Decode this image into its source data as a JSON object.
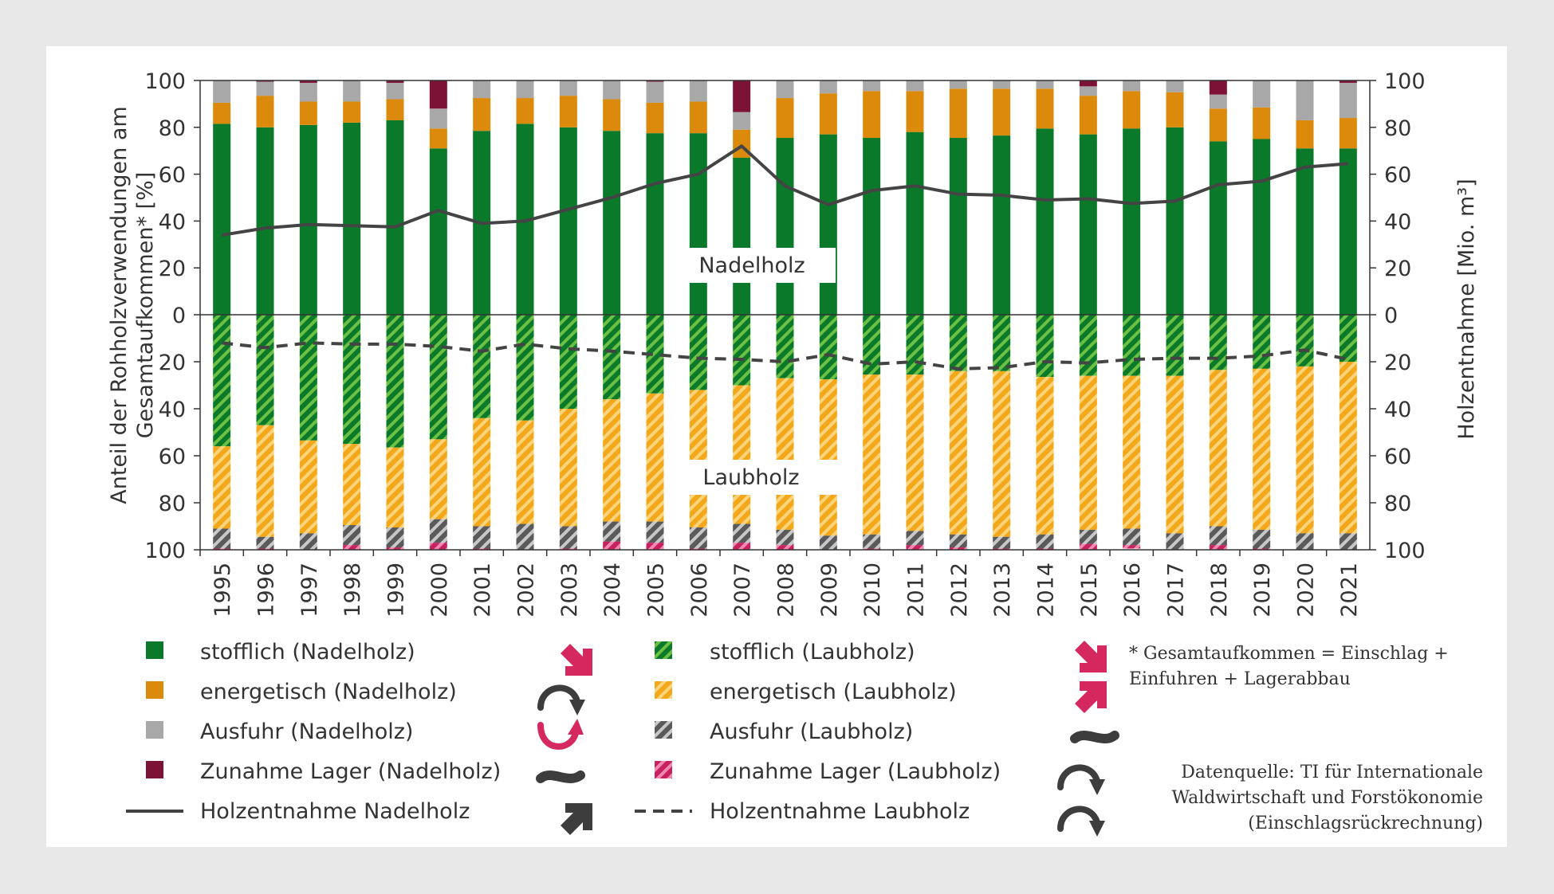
{
  "chart_data": {
    "type": "bar",
    "stacked": true,
    "layout": "diverging",
    "categories": [
      "1995",
      "1996",
      "1997",
      "1998",
      "1999",
      "2000",
      "2001",
      "2002",
      "2003",
      "2004",
      "2005",
      "2006",
      "2007",
      "2008",
      "2009",
      "2010",
      "2011",
      "2012",
      "2013",
      "2014",
      "2015",
      "2016",
      "2017",
      "2018",
      "2019",
      "2020",
      "2021"
    ],
    "ylabel_left": "Anteil der Rohholzverwendungen am Gesamtaufkommen* [%]",
    "ylabel_right": "Holzentnahme [Mio. m³]",
    "ylim_upper": [
      0,
      100
    ],
    "ylim_lower": [
      0,
      100
    ],
    "yticks_upper": [
      "0",
      "20",
      "40",
      "60",
      "80",
      "100"
    ],
    "yticks_lower": [
      "0",
      "20",
      "40",
      "60",
      "80",
      "100"
    ],
    "panel_labels": {
      "upper": "Nadelholz",
      "lower": "Laubholz"
    },
    "upper_series": [
      {
        "key": "stoff",
        "name": "stofflich (Nadelholz)",
        "color": "#0a7a2a",
        "values": [
          81.5,
          80,
          81,
          82,
          83,
          71,
          78.5,
          81.5,
          80,
          78.5,
          77.5,
          77.5,
          67,
          75.5,
          77,
          75.5,
          78,
          75.5,
          76.5,
          79.5,
          77,
          79.5,
          80,
          74,
          75,
          71,
          71
        ]
      },
      {
        "key": "ener",
        "name": "energetisch (Nadelholz)",
        "color": "#db8a0c",
        "values": [
          9,
          13.5,
          10,
          9,
          9,
          8.5,
          14,
          11,
          13.5,
          13.5,
          13,
          13.5,
          12,
          17,
          17.5,
          20,
          17.5,
          21,
          20,
          17,
          16.5,
          16,
          15,
          14,
          13.5,
          12,
          13
        ]
      },
      {
        "key": "aus",
        "name": "Ausfuhr  (Nadelholz)",
        "color": "#a8a8a8",
        "values": [
          9.5,
          6,
          8,
          9,
          7,
          8.5,
          7.5,
          7.5,
          6.5,
          8,
          9,
          9,
          7.5,
          7.5,
          5.5,
          4.5,
          4.5,
          3.5,
          3.5,
          3.5,
          4,
          4.5,
          5,
          6,
          11.5,
          17,
          15
        ]
      },
      {
        "key": "lager",
        "name": "Zunahme Lager (Nadelholz)",
        "color": "#7d1237",
        "values": [
          0,
          0.5,
          1,
          0,
          1,
          12,
          0,
          0,
          0,
          0,
          0.5,
          0,
          13.5,
          0,
          0,
          0,
          0,
          0,
          0,
          0,
          2.5,
          0,
          0,
          6,
          0,
          0,
          1
        ]
      }
    ],
    "lower_series": [
      {
        "key": "stoff_l",
        "name": "stofflich (Laubholz)",
        "color": "#0a7a2a",
        "values": [
          56,
          47,
          53.5,
          55,
          56.5,
          53,
          44,
          45,
          40,
          36,
          33.5,
          32,
          30,
          27,
          27.5,
          25.5,
          25.5,
          24,
          24,
          26.5,
          26,
          26,
          26,
          23.5,
          23,
          22,
          20
        ]
      },
      {
        "key": "ener_l",
        "name": "energetisch (Laubholz)",
        "color": "#f2a81a",
        "values": [
          35,
          47.5,
          39.5,
          34.5,
          34,
          34,
          46,
          44,
          50,
          52,
          54.5,
          58.5,
          59,
          64.5,
          66.5,
          68,
          66.5,
          69.5,
          70.5,
          67,
          65.5,
          65,
          67,
          66.5,
          68.5,
          71,
          73
        ]
      },
      {
        "key": "aus_l",
        "name": "Ausfuhr (Laubholz)",
        "color": "#7f7f7f",
        "values": [
          8.5,
          5,
          7,
          8.5,
          8.5,
          10,
          9.5,
          11,
          9.5,
          8.5,
          9,
          9,
          8,
          6.5,
          6,
          6,
          6,
          5.5,
          5,
          6,
          6,
          7,
          7,
          8,
          8,
          7,
          7
        ]
      },
      {
        "key": "lager_l",
        "name": "Zunahme Lager (Laubholz)",
        "color": "#c8215f",
        "values": [
          0.5,
          0.5,
          0,
          2,
          1,
          3,
          0.5,
          0,
          0.5,
          3.5,
          3,
          0.5,
          3,
          2,
          0,
          0.5,
          2,
          1,
          0.5,
          0.5,
          2.5,
          1.5,
          0,
          2,
          0.5,
          0,
          0
        ]
      }
    ],
    "line_upper": {
      "name": "Holzentnahme Nadelholz",
      "color": "#444444",
      "values": [
        34,
        37,
        38.5,
        38,
        37.5,
        44.5,
        39,
        40,
        45,
        50,
        56,
        60,
        72,
        55,
        47,
        53,
        55,
        51.5,
        51,
        49,
        49.5,
        47.5,
        48.5,
        55.5,
        57,
        63,
        64.5
      ]
    },
    "line_lower": {
      "name": "Holzentnahme Laubholz",
      "color": "#444444",
      "values": [
        12,
        14,
        12,
        12.5,
        12.5,
        13.5,
        15.5,
        12.5,
        14.5,
        15.5,
        17,
        18.5,
        19,
        20,
        17,
        21,
        20,
        23,
        22.5,
        20,
        20.5,
        19,
        18.5,
        18.5,
        17.5,
        15,
        19
      ]
    }
  },
  "legend": {
    "items": [
      {
        "label": "stofflich (Nadelholz)",
        "trend": "Abnahme"
      },
      {
        "label": "energetisch (Nadelholz)",
        "trend": "Zunahme, dann Abnahme"
      },
      {
        "label": "Ausfuhr  (Nadelholz)",
        "trend": "Abnahme, dann Zunahme"
      },
      {
        "label": "Zunahme Lager (Nadelholz)",
        "trend": "gleichbleibend"
      },
      {
        "label": "Holzentnahme Nadelholz",
        "trend": "Zunahme"
      },
      {
        "label": "stofflich (Laubholz)",
        "trend": "Abnahme"
      },
      {
        "label": "energetisch (Laubholz)",
        "trend": "Zunahme"
      },
      {
        "label": "Ausfuhr (Laubholz)",
        "trend": "gleichbleibend"
      },
      {
        "label": "Zunahme Lager (Laubholz)",
        "trend": "Zunahme, dann Abnahme"
      },
      {
        "label": "Holzentnahme Laubholz",
        "trend": "Zunahme, dann Abnahme"
      }
    ]
  },
  "footnote": [
    "* Gesamtaufkommen = Einschlag +",
    "Einfuhren + Lagerabbau"
  ],
  "source": [
    "Datenquelle: TI für Internationale",
    "Waldwirtschaft und Forstökonomie",
    "(Einschlagsrückrechnung)"
  ]
}
